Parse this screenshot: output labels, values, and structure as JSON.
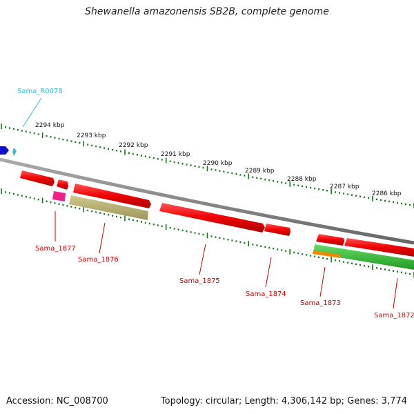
{
  "title": "Shewanella amazonensis SB2B, complete genome",
  "footer": {
    "accession": "Accession: NC_008700",
    "summary": "Topology: circular; Length: 4,306,142 bp; Genes: 3,774"
  },
  "ruler": {
    "labels": [
      "2294 kbp",
      "2293 kbp",
      "2292 kbp",
      "2291 kbp",
      "2290 kbp",
      "2289 kbp",
      "2288 kbp",
      "2287 kbp",
      "2286 kbp"
    ]
  },
  "features": {
    "rna_label": "Sama_R0078",
    "gene_labels": [
      "Sama_1877",
      "Sama_1876",
      "Sama_1875",
      "Sama_1874",
      "Sama_1873",
      "Sama_1872"
    ]
  },
  "colors": {
    "gene_red": "#ee0000",
    "gene_pink": "#ee2288",
    "gene_khaki": "#b8b070",
    "gene_green": "#33bb33",
    "gene_orange": "#ee8800",
    "rna_blue": "#1111cc",
    "rna_label": "#33bbdd",
    "tick_green": "#117711",
    "backbone": "#888888",
    "label_red": "#cc0000"
  }
}
